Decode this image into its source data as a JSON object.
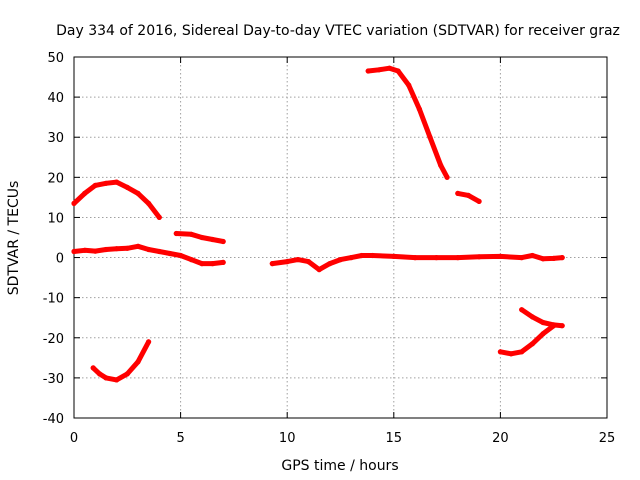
{
  "chart_data": {
    "type": "scatter",
    "title": "Day 334 of 2016, Sidereal Day-to-day VTEC variation (SDTVAR) for receiver graz",
    "xlabel": "GPS time / hours",
    "ylabel": "SDTVAR / TECUs",
    "xlim": [
      0,
      25
    ],
    "ylim": [
      -40,
      50
    ],
    "xticks": [
      0,
      5,
      10,
      15,
      20,
      25
    ],
    "yticks": [
      -40,
      -30,
      -20,
      -10,
      0,
      10,
      20,
      30,
      40,
      50
    ],
    "grid": true,
    "color": "#ff0000",
    "segments": [
      {
        "name": "near-zero-early",
        "points": [
          [
            0,
            1.5
          ],
          [
            0.5,
            1.8
          ],
          [
            1.0,
            1.6
          ],
          [
            1.5,
            2.0
          ],
          [
            2.0,
            2.2
          ],
          [
            2.5,
            2.3
          ],
          [
            3.0,
            2.8
          ],
          [
            3.5,
            2.0
          ],
          [
            4.0,
            1.5
          ],
          [
            4.5,
            1.0
          ],
          [
            5.0,
            0.5
          ],
          [
            5.5,
            -0.5
          ],
          [
            6.0,
            -1.5
          ],
          [
            6.5,
            -1.5
          ],
          [
            7.0,
            -1.2
          ]
        ]
      },
      {
        "name": "near-zero-late",
        "points": [
          [
            9.3,
            -1.5
          ],
          [
            10.0,
            -1.0
          ],
          [
            10.5,
            -0.5
          ],
          [
            11.0,
            -1.0
          ],
          [
            11.5,
            -3.0
          ],
          [
            12.0,
            -1.5
          ],
          [
            12.5,
            -0.5
          ],
          [
            13.0,
            0
          ],
          [
            13.5,
            0.5
          ],
          [
            14.0,
            0.5
          ],
          [
            15.0,
            0.3
          ],
          [
            16.0,
            0
          ],
          [
            17.0,
            0
          ],
          [
            18.0,
            0
          ],
          [
            19.0,
            0.2
          ],
          [
            20.0,
            0.3
          ],
          [
            21.0,
            0
          ],
          [
            21.5,
            0.5
          ],
          [
            22.0,
            -0.3
          ],
          [
            22.5,
            -0.2
          ],
          [
            22.9,
            0
          ]
        ]
      },
      {
        "name": "arc-upper-early",
        "points": [
          [
            0,
            13.5
          ],
          [
            0.5,
            16.0
          ],
          [
            1.0,
            18.0
          ],
          [
            1.5,
            18.5
          ],
          [
            2.0,
            18.8
          ],
          [
            2.5,
            17.5
          ],
          [
            3.0,
            16.0
          ],
          [
            3.5,
            13.5
          ],
          [
            4.0,
            10.0
          ]
        ]
      },
      {
        "name": "short-upper-mid",
        "points": [
          [
            4.8,
            6.0
          ],
          [
            5.5,
            5.8
          ],
          [
            6.0,
            5.0
          ],
          [
            6.5,
            4.5
          ],
          [
            7.0,
            4.0
          ]
        ]
      },
      {
        "name": "arc-lower-early",
        "points": [
          [
            0.9,
            -27.5
          ],
          [
            1.2,
            -29.0
          ],
          [
            1.5,
            -30.0
          ],
          [
            2.0,
            -30.5
          ],
          [
            2.5,
            -29.0
          ],
          [
            3.0,
            -26.0
          ],
          [
            3.5,
            -21.0
          ]
        ]
      },
      {
        "name": "peak-mid",
        "points": [
          [
            13.8,
            46.5
          ],
          [
            14.3,
            46.8
          ],
          [
            14.8,
            47.2
          ],
          [
            15.2,
            46.5
          ],
          [
            15.7,
            43.0
          ],
          [
            16.2,
            37.0
          ],
          [
            16.7,
            30.0
          ],
          [
            17.2,
            23.0
          ],
          [
            17.5,
            20.0
          ]
        ]
      },
      {
        "name": "short-mid",
        "points": [
          [
            18.0,
            16.0
          ],
          [
            18.5,
            15.5
          ],
          [
            19.0,
            14.0
          ]
        ]
      },
      {
        "name": "lower-late-1",
        "points": [
          [
            20.0,
            -23.5
          ],
          [
            20.5,
            -24.0
          ],
          [
            21.0,
            -23.5
          ],
          [
            21.5,
            -21.5
          ],
          [
            22.0,
            -19.0
          ],
          [
            22.5,
            -17.0
          ]
        ]
      },
      {
        "name": "lower-late-2",
        "points": [
          [
            21.0,
            -13.0
          ],
          [
            21.5,
            -14.8
          ],
          [
            22.0,
            -16.2
          ],
          [
            22.5,
            -16.8
          ],
          [
            22.9,
            -17.0
          ]
        ]
      }
    ]
  }
}
